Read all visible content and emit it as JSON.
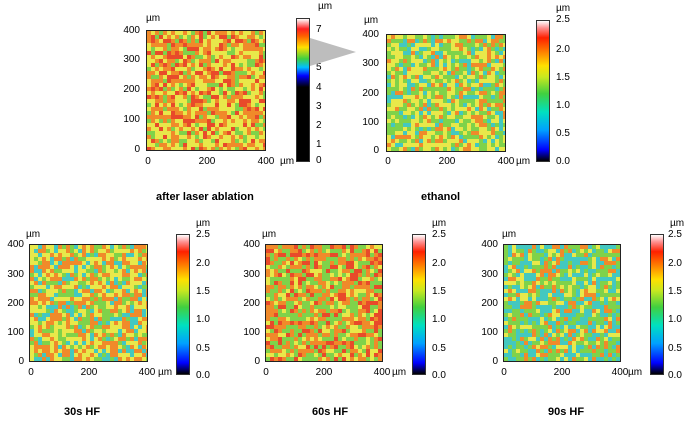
{
  "unit": "µm",
  "panels": [
    {
      "caption": "after laser ablation",
      "y_ticks": [
        "0",
        "100",
        "200",
        "300",
        "400"
      ],
      "x_ticks": [
        "0",
        "200",
        "400"
      ],
      "colorbar_ticks": [
        "0",
        "1",
        "2",
        "3",
        "4",
        "5",
        "6",
        "7"
      ],
      "colorbar_range": [
        0,
        7.5
      ],
      "colorbar_style": "rainbow-black"
    },
    {
      "caption": "ethanol",
      "y_ticks": [
        "0",
        "100",
        "200",
        "300",
        "400"
      ],
      "x_ticks": [
        "0",
        "200",
        "400"
      ],
      "colorbar_ticks": [
        "0.0",
        "0.5",
        "1.0",
        "1.5",
        "2.0",
        "2.5"
      ],
      "colorbar_range": [
        0,
        2.5
      ],
      "colorbar_style": "rainbow"
    },
    {
      "caption": "30s HF",
      "y_ticks": [
        "0",
        "100",
        "200",
        "300",
        "400"
      ],
      "x_ticks": [
        "0",
        "200",
        "400"
      ],
      "colorbar_ticks": [
        "0.0",
        "0.5",
        "1.0",
        "1.5",
        "2.0",
        "2.5"
      ],
      "colorbar_range": [
        0,
        2.5
      ],
      "colorbar_style": "rainbow"
    },
    {
      "caption": "60s HF",
      "y_ticks": [
        "0",
        "100",
        "200",
        "300",
        "400"
      ],
      "x_ticks": [
        "0",
        "200",
        "400"
      ],
      "colorbar_ticks": [
        "0.0",
        "0.5",
        "1.0",
        "1.5",
        "2.0",
        "2.5"
      ],
      "colorbar_range": [
        0,
        2.5
      ],
      "colorbar_style": "rainbow"
    },
    {
      "caption": "90s HF",
      "y_ticks": [
        "0",
        "100",
        "200",
        "300",
        "400"
      ],
      "x_ticks": [
        "0",
        "200",
        "400"
      ],
      "colorbar_ticks": [
        "0.0",
        "0.5",
        "1.0",
        "1.5",
        "2.0",
        "2.5"
      ],
      "colorbar_range": [
        0,
        2.5
      ],
      "colorbar_style": "rainbow"
    }
  ],
  "colors": {
    "map_orange": "#f08a2a",
    "map_yellow": "#e8e84a",
    "map_green": "#7fd24a",
    "map_cyan": "#43c8c0",
    "map_red": "#e84a2a",
    "callout_gray": "#bdbdbd"
  }
}
